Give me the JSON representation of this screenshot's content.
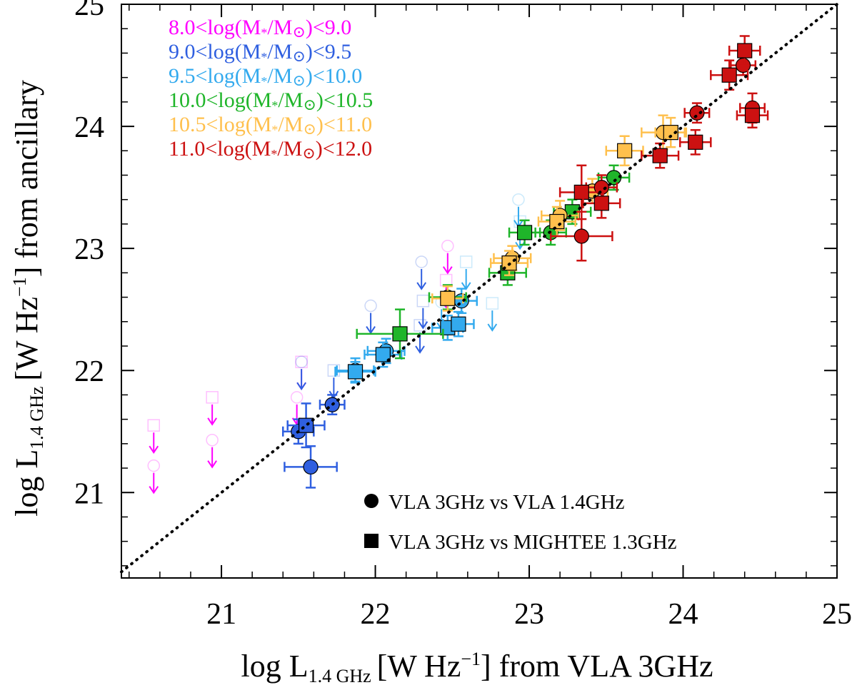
{
  "chart_data": {
    "type": "scatter",
    "xlabel": {
      "prefix": "log L",
      "sub": "1.4 GHz",
      "unit": "[W Hz",
      "exp": "−1",
      "tail": "] from VLA 3GHz"
    },
    "ylabel": {
      "prefix": "log L",
      "sub": "1.4 GHz",
      "unit": "[W Hz",
      "exp": "−1",
      "tail": "] from ancillary"
    },
    "xlim": [
      20.35,
      25.0
    ],
    "ylim": [
      20.3,
      25.0
    ],
    "xticks": [
      21,
      22,
      23,
      24,
      25
    ],
    "yticks": [
      21,
      22,
      23,
      24,
      25
    ],
    "xtick_labels": [
      "21",
      "22",
      "23",
      "24",
      "25"
    ],
    "ytick_labels": [
      "21",
      "22",
      "23",
      "24",
      "25"
    ],
    "one_to_one_line": true,
    "mass_bins": [
      {
        "range": "8.0<log(M*/M☉)<9.0",
        "color": "#ff00ff"
      },
      {
        "range": "9.0<log(M*/M☉)<9.5",
        "color": "#2f5fe0"
      },
      {
        "range": "9.5<log(M*/M☉)<10.0",
        "color": "#33aaee"
      },
      {
        "range": "10.0<log(M*/M☉)<10.5",
        "color": "#1fb52a"
      },
      {
        "range": "10.5<log(M*/M☉)<11.0",
        "color": "#ffc04d"
      },
      {
        "range": "11.0<log(M*/M☉)<12.0",
        "color": "#cc1111"
      }
    ],
    "legend_text": {
      "bins": [
        {
          "pre": "8.0<log(M",
          "post": "<9.0"
        },
        {
          "pre": "9.0<log(M",
          "post": "<9.5"
        },
        {
          "pre": "9.5<log(M",
          "post": "<10.0"
        },
        {
          "pre": "10.0<log(M",
          "post": "<10.5"
        },
        {
          "pre": "10.5<log(M",
          "post": "<11.0"
        },
        {
          "pre": "11.0<log(M",
          "post": "<12.0"
        }
      ],
      "star": "*",
      "slash": "/M",
      "sun": "⊙",
      "close": ")"
    },
    "markers": [
      {
        "shape": "circle",
        "label": "VLA 3GHz vs VLA 1.4GHz"
      },
      {
        "shape": "square",
        "label": "VLA 3GHz vs MIGHTEE 1.3GHz"
      }
    ],
    "detections": [
      {
        "x": 21.5,
        "y": 21.5,
        "xerr": 0.1,
        "yerr": 0.1,
        "shape": "circle",
        "bin": 1
      },
      {
        "x": 21.58,
        "y": 21.21,
        "xerr": 0.17,
        "yerr": 0.17,
        "shape": "circle",
        "bin": 1
      },
      {
        "x": 21.72,
        "y": 21.72,
        "xerr": 0.08,
        "yerr": 0.08,
        "shape": "circle",
        "bin": 1
      },
      {
        "x": 21.55,
        "y": 21.55,
        "xerr": 0.12,
        "yerr": 0.18,
        "shape": "square",
        "bin": 1
      },
      {
        "x": 21.87,
        "y": 22.0,
        "xerr": 0.12,
        "yerr": 0.1,
        "shape": "circle",
        "bin": 2
      },
      {
        "x": 22.07,
        "y": 22.16,
        "xerr": 0.12,
        "yerr": 0.1,
        "shape": "circle",
        "bin": 2
      },
      {
        "x": 22.56,
        "y": 22.57,
        "xerr": 0.1,
        "yerr": 0.1,
        "shape": "circle",
        "bin": 2
      },
      {
        "x": 21.87,
        "y": 21.99,
        "xerr": 0.13,
        "yerr": 0.08,
        "shape": "square",
        "bin": 2
      },
      {
        "x": 22.05,
        "y": 22.13,
        "xerr": 0.12,
        "yerr": 0.1,
        "shape": "square",
        "bin": 2
      },
      {
        "x": 22.47,
        "y": 22.35,
        "xerr": 0.1,
        "yerr": 0.1,
        "shape": "square",
        "bin": 2
      },
      {
        "x": 22.54,
        "y": 22.38,
        "xerr": 0.1,
        "yerr": 0.1,
        "shape": "square",
        "bin": 2
      },
      {
        "x": 22.47,
        "y": 22.6,
        "xerr": 0.12,
        "yerr": 0.1,
        "shape": "circle",
        "bin": 3
      },
      {
        "x": 23.14,
        "y": 23.13,
        "xerr": 0.1,
        "yerr": 0.1,
        "shape": "circle",
        "bin": 3
      },
      {
        "x": 23.55,
        "y": 23.58,
        "xerr": 0.1,
        "yerr": 0.1,
        "shape": "circle",
        "bin": 3
      },
      {
        "x": 22.16,
        "y": 22.3,
        "xerr": 0.28,
        "yerr": 0.2,
        "shape": "square",
        "bin": 3
      },
      {
        "x": 22.86,
        "y": 22.8,
        "xerr": 0.12,
        "yerr": 0.1,
        "shape": "square",
        "bin": 3
      },
      {
        "x": 22.97,
        "y": 23.13,
        "xerr": 0.1,
        "yerr": 0.1,
        "shape": "square",
        "bin": 3
      },
      {
        "x": 23.28,
        "y": 23.3,
        "xerr": 0.12,
        "yerr": 0.1,
        "shape": "square",
        "bin": 3
      },
      {
        "x": 22.89,
        "y": 22.92,
        "xerr": 0.12,
        "yerr": 0.1,
        "shape": "circle",
        "bin": 4
      },
      {
        "x": 23.2,
        "y": 23.27,
        "xerr": 0.12,
        "yerr": 0.12,
        "shape": "circle",
        "bin": 4
      },
      {
        "x": 23.41,
        "y": 23.47,
        "xerr": 0.1,
        "yerr": 0.1,
        "shape": "circle",
        "bin": 4
      },
      {
        "x": 23.87,
        "y": 23.95,
        "xerr": 0.14,
        "yerr": 0.14,
        "shape": "circle",
        "bin": 4
      },
      {
        "x": 22.47,
        "y": 22.59,
        "xerr": 0.1,
        "yerr": 0.1,
        "shape": "square",
        "bin": 4
      },
      {
        "x": 22.87,
        "y": 22.88,
        "xerr": 0.12,
        "yerr": 0.1,
        "shape": "square",
        "bin": 4
      },
      {
        "x": 23.18,
        "y": 23.22,
        "xerr": 0.12,
        "yerr": 0.12,
        "shape": "square",
        "bin": 4
      },
      {
        "x": 23.62,
        "y": 23.8,
        "xerr": 0.12,
        "yerr": 0.12,
        "shape": "square",
        "bin": 4
      },
      {
        "x": 23.92,
        "y": 23.95,
        "xerr": 0.1,
        "yerr": 0.12,
        "shape": "square",
        "bin": 4
      },
      {
        "x": 23.34,
        "y": 23.1,
        "xerr": 0.2,
        "yerr": 0.2,
        "shape": "circle",
        "bin": 5
      },
      {
        "x": 23.47,
        "y": 23.5,
        "xerr": 0.1,
        "yerr": 0.1,
        "shape": "circle",
        "bin": 5
      },
      {
        "x": 24.09,
        "y": 24.11,
        "xerr": 0.08,
        "yerr": 0.08,
        "shape": "circle",
        "bin": 5
      },
      {
        "x": 24.39,
        "y": 24.5,
        "xerr": 0.08,
        "yerr": 0.08,
        "shape": "circle",
        "bin": 5
      },
      {
        "x": 24.45,
        "y": 24.15,
        "xerr": 0.08,
        "yerr": 0.12,
        "shape": "circle",
        "bin": 5
      },
      {
        "x": 23.34,
        "y": 23.46,
        "xerr": 0.14,
        "yerr": 0.22,
        "shape": "square",
        "bin": 5
      },
      {
        "x": 23.47,
        "y": 23.37,
        "xerr": 0.12,
        "yerr": 0.12,
        "shape": "square",
        "bin": 5
      },
      {
        "x": 23.85,
        "y": 23.76,
        "xerr": 0.12,
        "yerr": 0.1,
        "shape": "square",
        "bin": 5
      },
      {
        "x": 24.08,
        "y": 23.87,
        "xerr": 0.1,
        "yerr": 0.1,
        "shape": "square",
        "bin": 5
      },
      {
        "x": 24.3,
        "y": 24.42,
        "xerr": 0.12,
        "yerr": 0.12,
        "shape": "square",
        "bin": 5
      },
      {
        "x": 24.4,
        "y": 24.62,
        "xerr": 0.1,
        "yerr": 0.12,
        "shape": "square",
        "bin": 5
      },
      {
        "x": 24.45,
        "y": 24.09,
        "xerr": 0.1,
        "yerr": 0.1,
        "shape": "square",
        "bin": 5
      }
    ],
    "upper_limits": [
      {
        "x": 20.56,
        "y": 21.22,
        "shape": "circle",
        "bin": 0
      },
      {
        "x": 20.56,
        "y": 21.55,
        "shape": "square",
        "bin": 0
      },
      {
        "x": 20.94,
        "y": 21.43,
        "shape": "circle",
        "bin": 0
      },
      {
        "x": 20.94,
        "y": 21.78,
        "shape": "square",
        "bin": 0
      },
      {
        "x": 21.49,
        "y": 21.78,
        "shape": "circle",
        "bin": 0
      },
      {
        "x": 21.52,
        "y": 22.07,
        "shape": "square",
        "bin": 0
      },
      {
        "x": 22.47,
        "y": 23.02,
        "shape": "circle",
        "bin": 0
      },
      {
        "x": 22.46,
        "y": 22.74,
        "shape": "square",
        "bin": 0
      },
      {
        "x": 21.52,
        "y": 22.07,
        "shape": "circle",
        "bin": 1
      },
      {
        "x": 21.73,
        "y": 22.0,
        "shape": "square",
        "bin": 1
      },
      {
        "x": 21.97,
        "y": 22.53,
        "shape": "circle",
        "bin": 1
      },
      {
        "x": 22.3,
        "y": 22.89,
        "shape": "circle",
        "bin": 1
      },
      {
        "x": 22.31,
        "y": 22.57,
        "shape": "square",
        "bin": 1
      },
      {
        "x": 22.29,
        "y": 22.37,
        "shape": "square",
        "bin": 1
      },
      {
        "x": 22.59,
        "y": 22.89,
        "shape": "square",
        "bin": 2
      },
      {
        "x": 22.43,
        "y": 22.56,
        "shape": "circle",
        "bin": 2
      },
      {
        "x": 22.76,
        "y": 22.55,
        "shape": "square",
        "bin": 2
      },
      {
        "x": 22.93,
        "y": 23.4,
        "shape": "circle",
        "bin": 2
      },
      {
        "x": 22.94,
        "y": 23.22,
        "shape": "square",
        "bin": 2
      }
    ]
  }
}
